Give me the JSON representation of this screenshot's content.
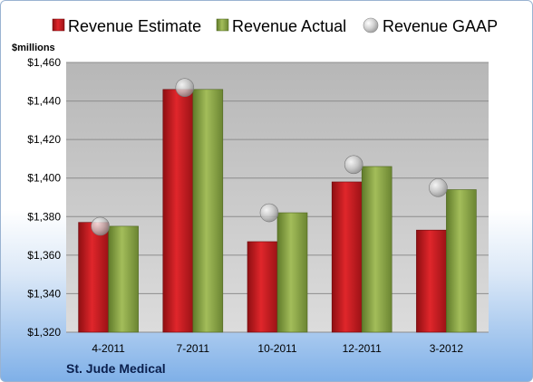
{
  "chart_data": {
    "type": "bar",
    "unit_label": "$millions",
    "company": "St. Jude Medical",
    "categories": [
      "4-2011",
      "7-2011",
      "10-2011",
      "12-2011",
      "3-2012"
    ],
    "series": [
      {
        "name": "Revenue Estimate",
        "kind": "bar",
        "color": "#cc1f24",
        "values": [
          1377,
          1446,
          1367,
          1398,
          1373
        ]
      },
      {
        "name": "Revenue Actual",
        "kind": "bar",
        "color": "#8fa84c",
        "values": [
          1375,
          1446,
          1382,
          1406,
          1394
        ]
      },
      {
        "name": "Revenue GAAP",
        "kind": "marker",
        "color": "#b8b8b8",
        "values": [
          1375,
          1447,
          1382,
          1407,
          1395
        ]
      }
    ],
    "ylim": [
      1320,
      1460
    ],
    "yticks": [
      "$1,320",
      "$1,340",
      "$1,360",
      "$1,380",
      "$1,400",
      "$1,420",
      "$1,440",
      "$1,460"
    ],
    "ytick_values": [
      1320,
      1340,
      1360,
      1380,
      1400,
      1420,
      1440,
      1460
    ],
    "grid": true,
    "legend_position": "top"
  }
}
